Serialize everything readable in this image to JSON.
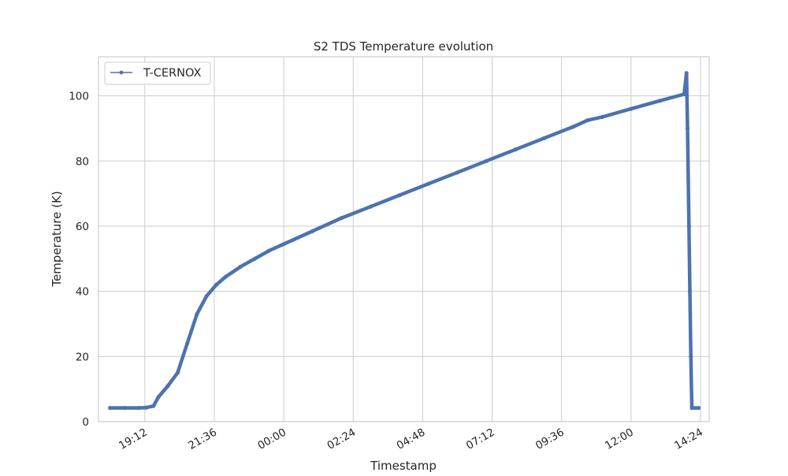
{
  "chart_data": {
    "type": "line",
    "title": "S2 TDS Temperature evolution",
    "xlabel": "Timestamp",
    "ylabel": "Temperature (K)",
    "ylim": [
      0,
      112
    ],
    "xlim_hours": [
      17.6,
      14.7
    ],
    "grid": true,
    "legend": {
      "placement": "top-left",
      "entries": [
        "T-CERNOX"
      ]
    },
    "x_ticks": [
      "19:12",
      "21:36",
      "00:00",
      "02:24",
      "04:48",
      "07:12",
      "09:36",
      "12:00",
      "14:24"
    ],
    "y_ticks": [
      0,
      20,
      40,
      60,
      80,
      100
    ],
    "series": [
      {
        "name": "T-CERNOX",
        "color": "#4c72b0",
        "points": [
          {
            "time": "18:00",
            "temperature": 4.2
          },
          {
            "time": "18:30",
            "temperature": 4.2
          },
          {
            "time": "19:00",
            "temperature": 4.2
          },
          {
            "time": "19:15",
            "temperature": 4.3
          },
          {
            "time": "19:30",
            "temperature": 4.8
          },
          {
            "time": "19:40",
            "temperature": 7.5
          },
          {
            "time": "20:00",
            "temperature": 11
          },
          {
            "time": "20:20",
            "temperature": 15
          },
          {
            "time": "20:40",
            "temperature": 24
          },
          {
            "time": "21:00",
            "temperature": 33
          },
          {
            "time": "21:20",
            "temperature": 38.5
          },
          {
            "time": "21:40",
            "temperature": 42
          },
          {
            "time": "22:00",
            "temperature": 44.5
          },
          {
            "time": "22:30",
            "temperature": 47.5
          },
          {
            "time": "23:00",
            "temperature": 50
          },
          {
            "time": "23:30",
            "temperature": 52.5
          },
          {
            "time": "00:00",
            "temperature": 54.5
          },
          {
            "time": "01:00",
            "temperature": 58.5
          },
          {
            "time": "02:00",
            "temperature": 62.5
          },
          {
            "time": "03:00",
            "temperature": 66
          },
          {
            "time": "04:00",
            "temperature": 69.5
          },
          {
            "time": "05:00",
            "temperature": 73
          },
          {
            "time": "06:00",
            "temperature": 76.5
          },
          {
            "time": "07:00",
            "temperature": 80
          },
          {
            "time": "08:00",
            "temperature": 83.5
          },
          {
            "time": "09:00",
            "temperature": 87
          },
          {
            "time": "10:00",
            "temperature": 90.5
          },
          {
            "time": "10:30",
            "temperature": 92.5
          },
          {
            "time": "11:00",
            "temperature": 93.5
          },
          {
            "time": "12:00",
            "temperature": 96
          },
          {
            "time": "13:00",
            "temperature": 98.5
          },
          {
            "time": "13:50",
            "temperature": 100.5
          },
          {
            "time": "13:55",
            "temperature": 107
          },
          {
            "time": "13:57",
            "temperature": 90
          },
          {
            "time": "14:00",
            "temperature": 60
          },
          {
            "time": "14:02",
            "temperature": 40
          },
          {
            "time": "14:04",
            "temperature": 20
          },
          {
            "time": "14:06",
            "temperature": 4.2
          },
          {
            "time": "14:20",
            "temperature": 4.2
          }
        ]
      }
    ]
  }
}
